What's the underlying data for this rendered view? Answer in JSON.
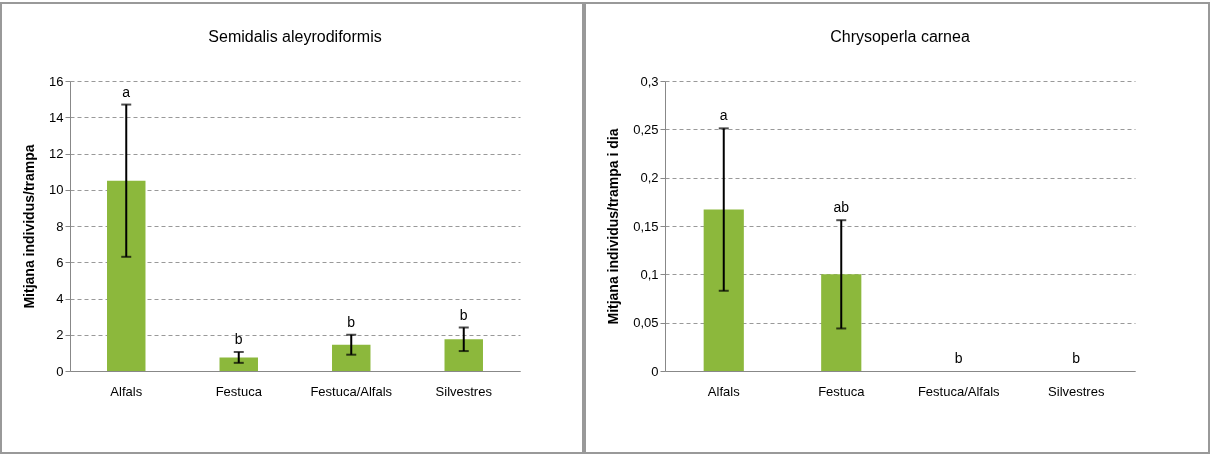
{
  "chart_data": [
    {
      "type": "bar",
      "title": "Semidalis aleyrodiformis",
      "ylabel": "Mitjana individus/trampa",
      "categories": [
        "Alfals",
        "Festuca",
        "Festuca/Alfals",
        "Silvestres"
      ],
      "series": [
        {
          "color": "#8cb83c",
          "values": [
            10.5,
            0.75,
            1.45,
            1.75
          ],
          "errors": [
            4.2,
            0.3,
            0.55,
            0.65
          ]
        }
      ],
      "ylim": [
        0,
        16
      ],
      "yticks": [
        0,
        2,
        4,
        6,
        8,
        10,
        12,
        14,
        16
      ],
      "grid": "y",
      "annotations": [
        "a",
        "b",
        "b",
        "b"
      ]
    },
    {
      "type": "bar",
      "title": "Chrysoperla carnea",
      "ylabel": "Mitjana individus/trampa i dia",
      "categories": [
        "Alfals",
        "Festuca",
        "Festuca/Alfals",
        "Silvestres"
      ],
      "series": [
        {
          "color": "#8cb83c",
          "values": [
            0.167,
            0.1,
            0,
            0
          ],
          "errors": [
            0.084,
            0.056,
            null,
            null
          ]
        }
      ],
      "ylim": [
        0,
        0.3
      ],
      "yticks": [
        {
          "value": 0,
          "label": "0"
        },
        {
          "value": 0.05,
          "label": "0,05"
        },
        {
          "value": 0.1,
          "label": "0,1"
        },
        {
          "value": 0.15,
          "label": "0,15"
        },
        {
          "value": 0.2,
          "label": "0,2"
        },
        {
          "value": 0.25,
          "label": "0,25"
        },
        {
          "value": 0.3,
          "label": "0,3"
        }
      ],
      "grid": "y",
      "annotations": [
        "a",
        "ab",
        "b",
        "b"
      ]
    }
  ]
}
